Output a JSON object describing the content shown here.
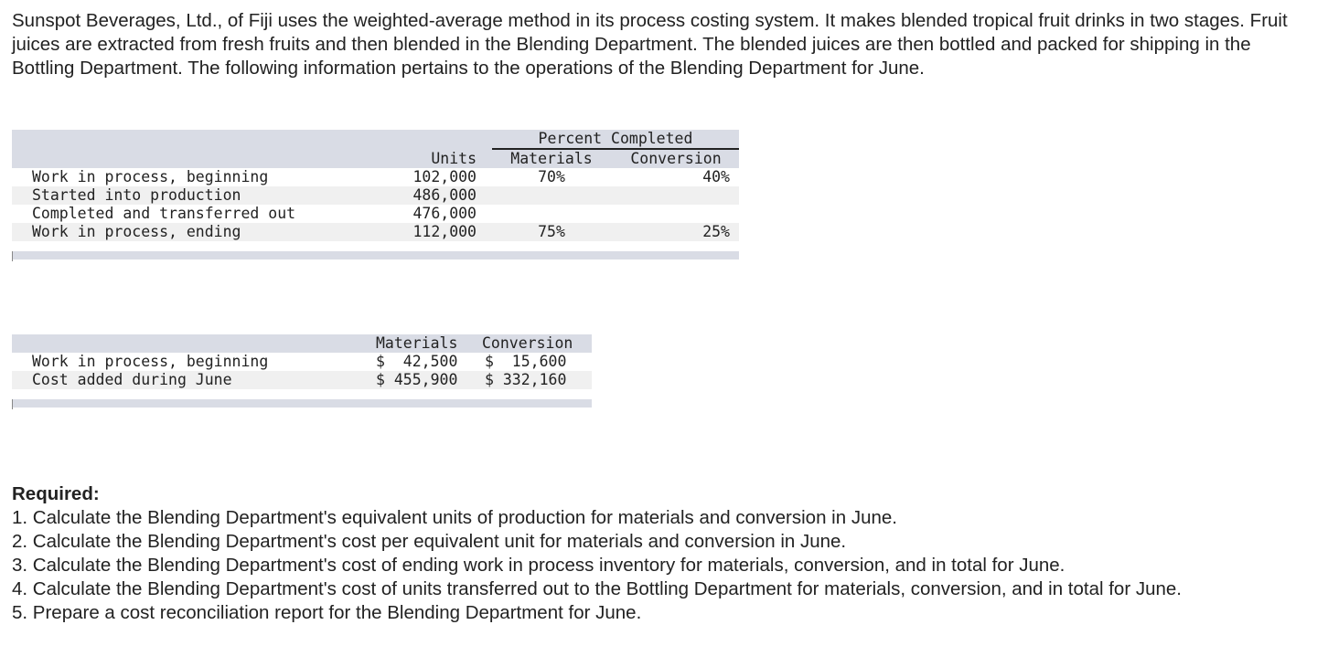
{
  "intro": "Sunspot Beverages, Ltd., of Fiji uses the weighted-average method in its process costing system. It makes blended tropical fruit drinks in two stages. Fruit juices are extracted from fresh fruits and then blended in the Blending Department. The blended juices are then bottled and packed for shipping in the Bottling Department. The following information pertains to the operations of the Blending Department for June.",
  "units_table": {
    "group_header": "Percent Completed",
    "headers": {
      "units": "Units",
      "materials": "Materials",
      "conversion": "Conversion"
    },
    "rows": [
      {
        "label": "Work in process, beginning",
        "units": "102,000",
        "materials": "70%",
        "conversion": "40%"
      },
      {
        "label": "Started into production",
        "units": "486,000",
        "materials": "",
        "conversion": ""
      },
      {
        "label": "Completed and transferred out",
        "units": "476,000",
        "materials": "",
        "conversion": ""
      },
      {
        "label": "Work in process, ending",
        "units": "112,000",
        "materials": "75%",
        "conversion": "25%"
      }
    ]
  },
  "cost_table": {
    "headers": {
      "materials": "Materials",
      "conversion": "Conversion"
    },
    "rows": [
      {
        "label": "Work in process, beginning",
        "materials": "$  42,500",
        "conversion": "$  15,600"
      },
      {
        "label": "Cost added during June",
        "materials": "$ 455,900",
        "conversion": "$ 332,160"
      }
    ]
  },
  "required": {
    "title": "Required:",
    "items": [
      "1. Calculate the Blending Department's equivalent units of production for materials and conversion in June.",
      "2. Calculate the Blending Department's cost per equivalent unit for materials and conversion in June.",
      "3. Calculate the Blending Department's cost of ending work in process inventory for materials, conversion, and in total for June.",
      "4. Calculate the Blending Department's cost of units transferred out to the Bottling Department for materials, conversion, and in total for June.",
      "5. Prepare a cost reconciliation report for the Blending Department for June."
    ]
  }
}
